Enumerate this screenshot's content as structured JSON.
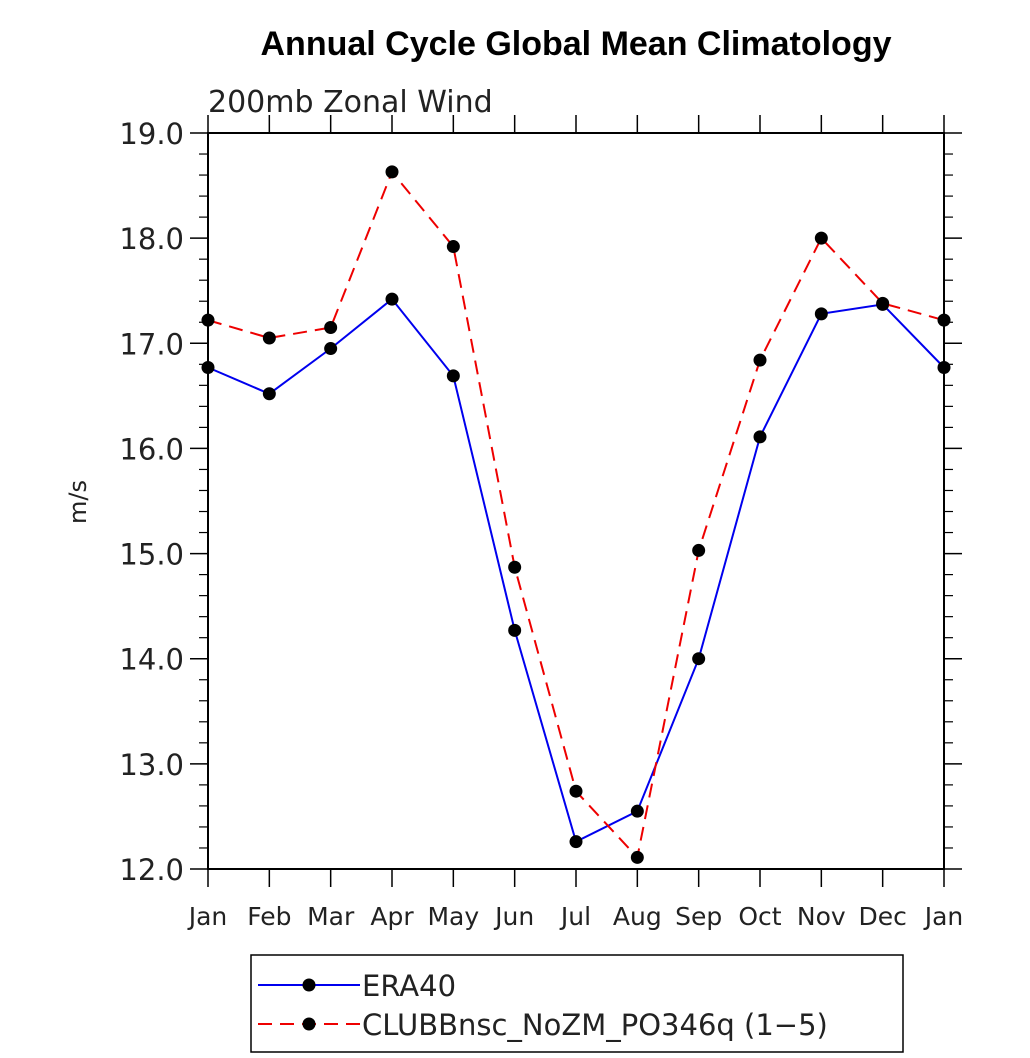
{
  "chart_data": {
    "type": "line",
    "title": "Annual Cycle Global Mean Climatology",
    "subtitle": "200mb Zonal Wind",
    "xlabel": "",
    "ylabel": "m/s",
    "categories": [
      "Jan",
      "Feb",
      "Mar",
      "Apr",
      "May",
      "Jun",
      "Jul",
      "Aug",
      "Sep",
      "Oct",
      "Nov",
      "Dec",
      "Jan"
    ],
    "ylim": [
      12.0,
      19.0
    ],
    "yticks": [
      "12.0",
      "13.0",
      "14.0",
      "15.0",
      "16.0",
      "17.0",
      "18.0",
      "19.0"
    ],
    "grid": false,
    "legend_position": "bottom",
    "series": [
      {
        "name": "ERA40",
        "color": "#0000ee",
        "dash": "solid",
        "values": [
          16.77,
          16.52,
          16.95,
          17.42,
          16.69,
          14.27,
          12.26,
          12.55,
          14.0,
          16.11,
          17.28,
          17.37,
          16.77
        ]
      },
      {
        "name": "CLUBBnsc_NoZM_PO346q (1−5)",
        "color": "#ee0000",
        "dash": "dashed",
        "values": [
          17.22,
          17.05,
          17.15,
          18.63,
          17.92,
          14.87,
          12.74,
          12.11,
          15.03,
          16.84,
          18.0,
          17.38,
          17.22
        ]
      }
    ]
  }
}
